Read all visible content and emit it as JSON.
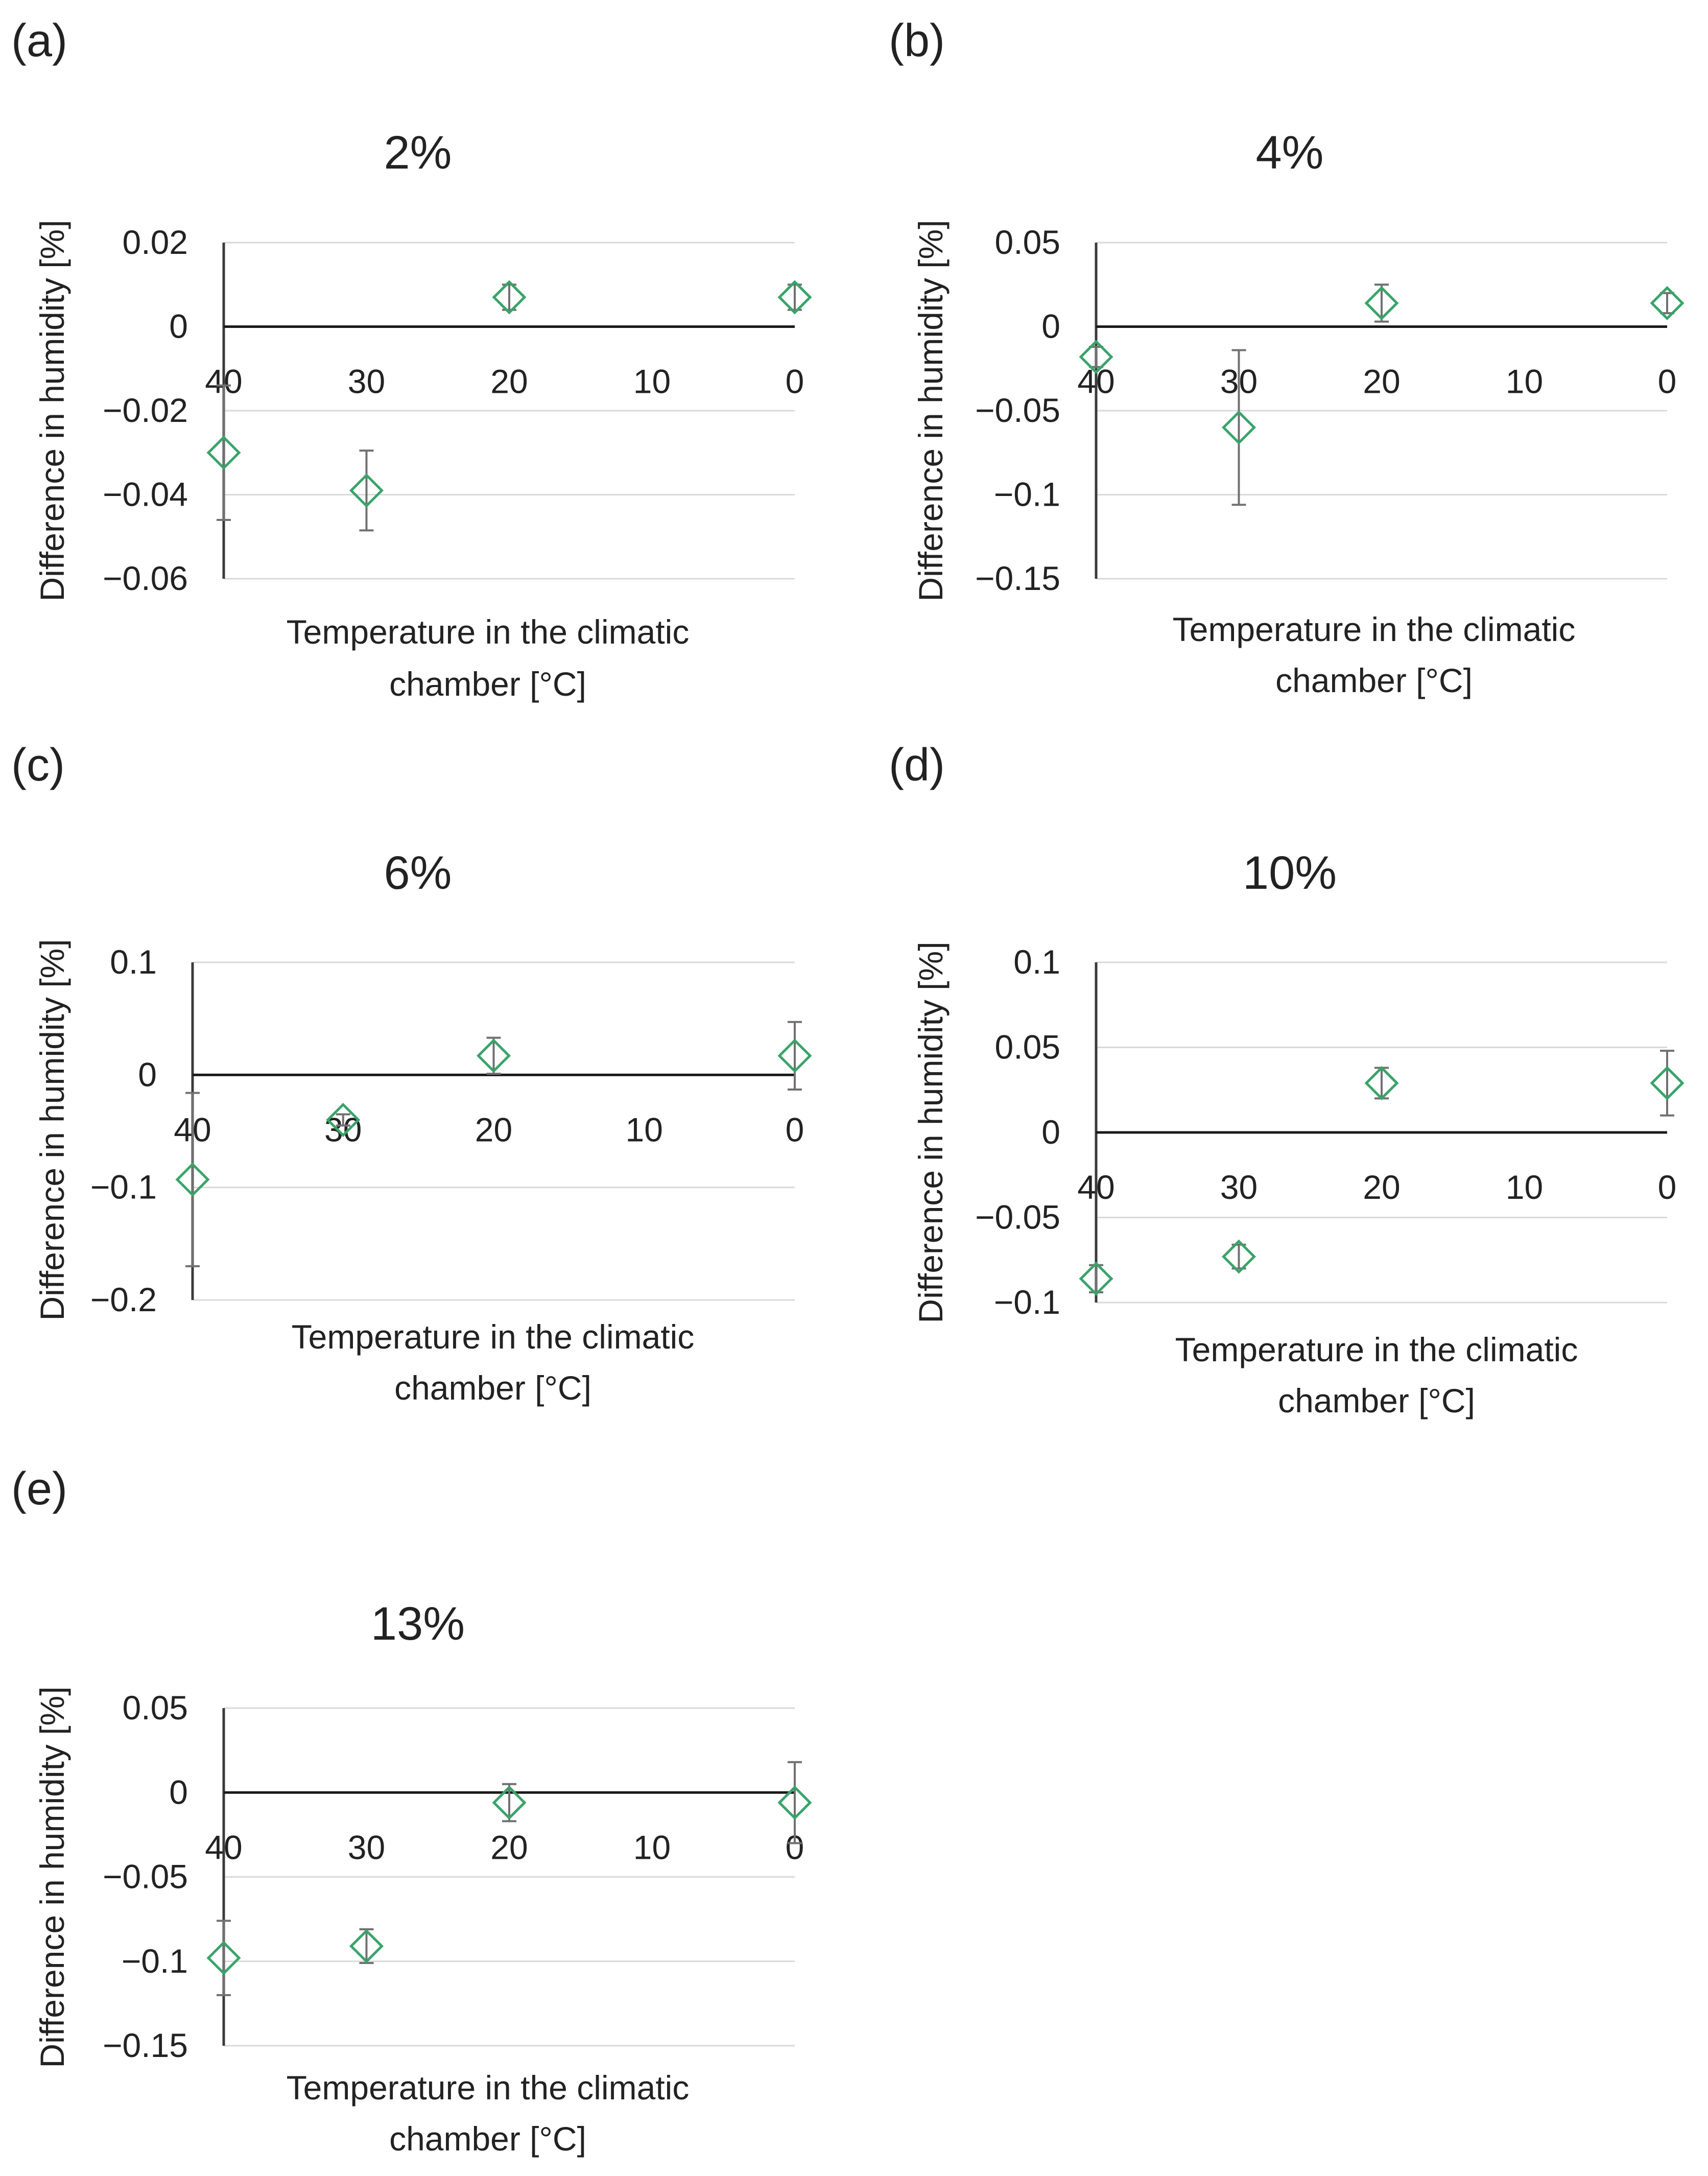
{
  "marker_color": "#3aa36a",
  "chart_data": [
    {
      "type": "scatter",
      "panel": "(a)",
      "title": "2%",
      "xlabel": "Temperature in the climatic chamber [°C]",
      "ylabel": "Difference in humidity [%]",
      "xlim": [
        40,
        0
      ],
      "x_ticks": [
        40,
        30,
        20,
        10,
        0
      ],
      "ylim": [
        -0.06,
        0.02
      ],
      "y_ticks": [
        0.02,
        0,
        -0.02,
        -0.04,
        -0.06
      ],
      "y_tick_labels": [
        "0.02",
        "0",
        "−0.02",
        "−0.04",
        "−0.06"
      ],
      "grid": true,
      "points": [
        {
          "x": 40,
          "y": -0.03,
          "err": 0.016
        },
        {
          "x": 30,
          "y": -0.039,
          "err": 0.0095
        },
        {
          "x": 20,
          "y": 0.007,
          "err": 0.003
        },
        {
          "x": 0,
          "y": 0.007,
          "err": 0.003
        }
      ]
    },
    {
      "type": "scatter",
      "panel": "(b)",
      "title": "4%",
      "xlabel": "Temperature in the climatic chamber [°C]",
      "ylabel": "Difference in humidity [%]",
      "xlim": [
        40,
        0
      ],
      "x_ticks": [
        40,
        30,
        20,
        10,
        0
      ],
      "ylim": [
        -0.15,
        0.05
      ],
      "y_ticks": [
        0.05,
        0,
        -0.05,
        -0.1,
        -0.15
      ],
      "y_tick_labels": [
        "0.05",
        "0",
        "−0.05",
        "−0.1",
        "−0.15"
      ],
      "grid": true,
      "points": [
        {
          "x": 40,
          "y": -0.018,
          "err": 0.006
        },
        {
          "x": 30,
          "y": -0.06,
          "err": 0.046
        },
        {
          "x": 20,
          "y": 0.014,
          "err": 0.011
        },
        {
          "x": 0,
          "y": 0.014,
          "err": 0.006
        }
      ]
    },
    {
      "type": "scatter",
      "panel": "(c)",
      "title": "6%",
      "xlabel": "Temperature in the climatic chamber [°C]",
      "ylabel": "Difference in humidity [%]",
      "xlim": [
        40,
        0
      ],
      "x_ticks": [
        40,
        30,
        20,
        10,
        0
      ],
      "ylim": [
        -0.2,
        0.1
      ],
      "y_ticks": [
        0.1,
        0,
        -0.1,
        -0.2
      ],
      "y_tick_labels": [
        "0.1",
        "0",
        "−0.1",
        "−0.2"
      ],
      "grid": true,
      "points": [
        {
          "x": 40,
          "y": -0.093,
          "err": 0.077
        },
        {
          "x": 30,
          "y": -0.04,
          "err": 0.005
        },
        {
          "x": 20,
          "y": 0.017,
          "err": 0.016
        },
        {
          "x": 0,
          "y": 0.017,
          "err": 0.03
        }
      ]
    },
    {
      "type": "scatter",
      "panel": "(d)",
      "title": "10%",
      "xlabel": "Temperature in the climatic chamber [°C]",
      "ylabel": "Difference in humidity [%]",
      "xlim": [
        40,
        0
      ],
      "x_ticks": [
        40,
        30,
        20,
        10,
        0
      ],
      "ylim": [
        -0.1,
        0.1
      ],
      "y_ticks": [
        0.1,
        0.05,
        0,
        -0.05,
        -0.1
      ],
      "y_tick_labels": [
        "0.1",
        "0.05",
        "0",
        "−0.05",
        "−0.1"
      ],
      "grid": true,
      "points": [
        {
          "x": 40,
          "y": -0.086,
          "err": 0.008
        },
        {
          "x": 30,
          "y": -0.073,
          "err": 0.007
        },
        {
          "x": 20,
          "y": 0.029,
          "err": 0.009
        },
        {
          "x": 0,
          "y": 0.029,
          "err": 0.019
        }
      ]
    },
    {
      "type": "scatter",
      "panel": "(e)",
      "title": "13%",
      "xlabel": "Temperature in the climatic chamber [°C]",
      "ylabel": "Difference in humidity [%]",
      "xlim": [
        40,
        0
      ],
      "x_ticks": [
        40,
        30,
        20,
        10,
        0
      ],
      "ylim": [
        -0.15,
        0.05
      ],
      "y_ticks": [
        0.05,
        0,
        -0.05,
        -0.1,
        -0.15
      ],
      "y_tick_labels": [
        "0.05",
        "0",
        "−0.05",
        "−0.1",
        "−0.15"
      ],
      "grid": true,
      "points": [
        {
          "x": 40,
          "y": -0.098,
          "err": 0.022
        },
        {
          "x": 30,
          "y": -0.091,
          "err": 0.01
        },
        {
          "x": 20,
          "y": -0.006,
          "err": 0.011
        },
        {
          "x": 0,
          "y": -0.006,
          "err": 0.024
        }
      ]
    }
  ]
}
